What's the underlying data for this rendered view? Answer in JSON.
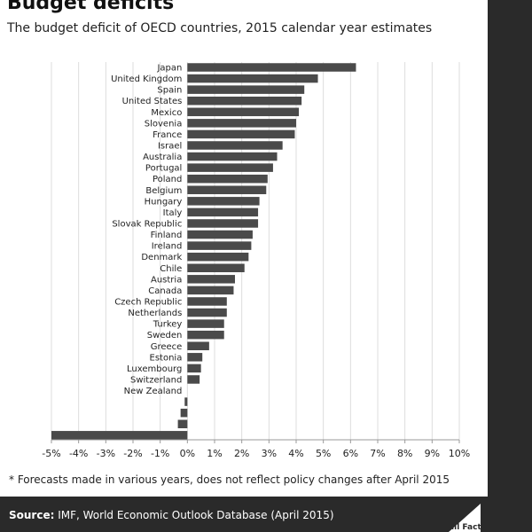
{
  "chart_data": {
    "type": "bar",
    "orientation": "horizontal",
    "title": "Budget deficits",
    "subtitle": "The budget deficit of OECD countries, 2015 calendar year estimates",
    "categories": [
      "Japan",
      "United Kingdom",
      "Spain",
      "United States",
      "Mexico",
      "Slovenia",
      "France",
      "Israel",
      "Australia",
      "Portugal",
      "Poland",
      "Belgium",
      "Hungary",
      "Italy",
      "Slovak Republic",
      "Finland",
      "Ireland",
      "Denmark",
      "Chile",
      "Austria",
      "Canada",
      "Czech Republic",
      "Netherlands",
      "Turkey",
      "Sweden",
      "Greece",
      "Estonia",
      "Luxembourg",
      "Switzerland",
      "New Zealand",
      "",
      "",
      "",
      ""
    ],
    "values": [
      6.2,
      4.8,
      4.3,
      4.2,
      4.1,
      4.0,
      3.95,
      3.5,
      3.3,
      3.15,
      2.95,
      2.9,
      2.65,
      2.6,
      2.6,
      2.4,
      2.35,
      2.25,
      2.1,
      1.75,
      1.7,
      1.45,
      1.45,
      1.35,
      1.35,
      0.8,
      0.55,
      0.5,
      0.45,
      0.0,
      -0.1,
      -0.25,
      -0.35,
      -5.0
    ],
    "xlim": [
      -5,
      10
    ],
    "xticks": [
      "-5%",
      "-4%",
      "-3%",
      "-2%",
      "-1%",
      "0%",
      "1%",
      "2%",
      "3%",
      "4%",
      "5%",
      "6%",
      "7%",
      "8%",
      "9%",
      "10%"
    ],
    "xtick_values": [
      -5,
      -4,
      -3,
      -2,
      -1,
      0,
      1,
      2,
      3,
      4,
      5,
      6,
      7,
      8,
      9,
      10
    ],
    "grid": "vertical",
    "bar_color": "#4a4a4a",
    "grid_color": "#dddddd"
  },
  "footnote": "* Forecasts made in various years, does not reflect policy changes after April 2015",
  "source_label": "Source:",
  "source_text": " IMF, World Economic Outlook Database (April 2015)",
  "logo_text": "Full Fact",
  "colors": {
    "footer": "#2a2a2a",
    "logo": "#ffffff"
  }
}
